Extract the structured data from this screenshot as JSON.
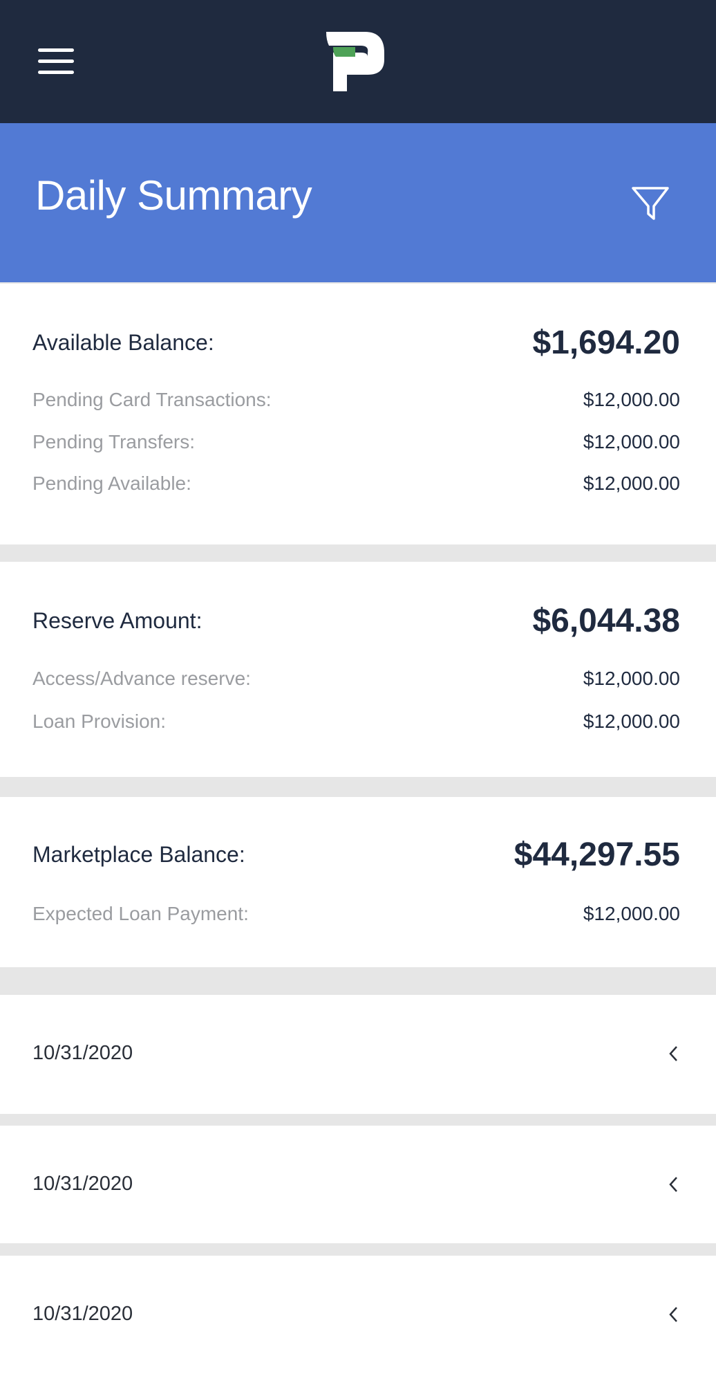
{
  "header": {
    "menu_icon": "hamburger-menu-icon",
    "logo_icon": "p-logo",
    "brand_colors": {
      "navy": "#1f2a3f",
      "green": "#4ea257",
      "blue": "#527ad4"
    }
  },
  "title_bar": {
    "title": "Daily Summary",
    "filter_icon": "filter-funnel-icon"
  },
  "cards": [
    {
      "label": "Available Balance:",
      "amount": "$1,694.20",
      "items": [
        {
          "label": "Pending Card Transactions:",
          "amount": "$12,000.00"
        },
        {
          "label": "Pending Transfers:",
          "amount": "$12,000.00"
        },
        {
          "label": "Pending Available:",
          "amount": "$12,000.00"
        }
      ]
    },
    {
      "label": "Reserve Amount:",
      "amount": "$6,044.38",
      "items": [
        {
          "label": "Access/Advance reserve:",
          "amount": "$12,000.00"
        },
        {
          "label": "Loan Provision:",
          "amount": "$12,000.00"
        }
      ]
    },
    {
      "label": "Marketplace Balance:",
      "amount": "$44,297.55",
      "items": [
        {
          "label": "Expected Loan Payment:",
          "amount": "$12,000.00"
        }
      ]
    }
  ],
  "dates": [
    {
      "date": "10/31/2020",
      "icon": "chevron-left-icon"
    },
    {
      "date": "10/31/2020",
      "icon": "chevron-left-icon"
    },
    {
      "date": "10/31/2020",
      "icon": "chevron-left-icon"
    }
  ]
}
